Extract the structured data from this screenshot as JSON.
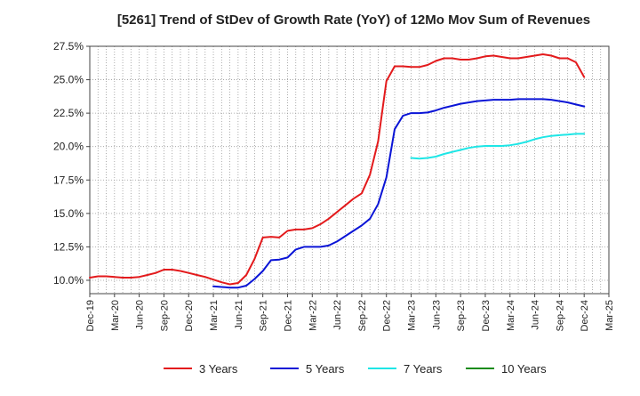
{
  "chart_data": {
    "type": "line",
    "title": "[5261]  Trend of StDev of Growth Rate (YoY) of 12Mo Mov Sum of Revenues",
    "xlabel": "",
    "ylabel": "",
    "ylim": [
      9.0,
      27.5
    ],
    "yticks": [
      10.0,
      12.5,
      15.0,
      17.5,
      20.0,
      22.5,
      25.0,
      27.5
    ],
    "ytick_labels": [
      "10.0%",
      "12.5%",
      "15.0%",
      "17.5%",
      "20.0%",
      "22.5%",
      "25.0%",
      "27.5%"
    ],
    "x_tick_labels": [
      "Dec-19",
      "Mar-20",
      "Jun-20",
      "Sep-20",
      "Dec-20",
      "Mar-21",
      "Jun-21",
      "Sep-21",
      "Dec-21",
      "Mar-22",
      "Jun-22",
      "Sep-22",
      "Dec-22",
      "Mar-23",
      "Jun-23",
      "Sep-23",
      "Dec-23",
      "Mar-24",
      "Jun-24",
      "Sep-24",
      "Dec-24",
      "Mar-25"
    ],
    "x_start": "Dec-19",
    "x_months": 63,
    "grid": true,
    "legend_position": "bottom",
    "series": [
      {
        "name": "3 Years",
        "color": "#e31a1c",
        "start_index": 0,
        "values": [
          10.2,
          10.3,
          10.3,
          10.25,
          10.2,
          10.2,
          10.25,
          10.4,
          10.55,
          10.8,
          10.8,
          10.7,
          10.55,
          10.4,
          10.25,
          10.05,
          9.85,
          9.7,
          9.8,
          10.4,
          11.6,
          13.2,
          13.25,
          13.2,
          13.7,
          13.8,
          13.8,
          13.9,
          14.2,
          14.6,
          15.1,
          15.6,
          16.1,
          16.5,
          17.9,
          20.4,
          24.9,
          26.0,
          26.0,
          25.95,
          25.95,
          26.1,
          26.4,
          26.6,
          26.6,
          26.5,
          26.5,
          26.6,
          26.75,
          26.8,
          26.7,
          26.6,
          26.6,
          26.7,
          26.8,
          26.9,
          26.8,
          26.6,
          26.6,
          26.3,
          25.2
        ]
      },
      {
        "name": "5 Years",
        "color": "#0a14d6",
        "start_index": 15,
        "values": [
          9.55,
          9.5,
          9.45,
          9.45,
          9.6,
          10.1,
          10.7,
          11.5,
          11.55,
          11.7,
          12.3,
          12.5,
          12.5,
          12.5,
          12.6,
          12.9,
          13.3,
          13.7,
          14.1,
          14.6,
          15.7,
          17.7,
          21.3,
          22.3,
          22.5,
          22.5,
          22.55,
          22.7,
          22.9,
          23.05,
          23.2,
          23.3,
          23.4,
          23.45,
          23.5,
          23.5,
          23.5,
          23.55,
          23.55,
          23.55,
          23.55,
          23.5,
          23.4,
          23.3,
          23.15,
          23.0
        ]
      },
      {
        "name": "7 Years",
        "color": "#1ee6e6",
        "start_index": 39,
        "values": [
          19.15,
          19.1,
          19.15,
          19.25,
          19.45,
          19.6,
          19.75,
          19.9,
          20.0,
          20.05,
          20.05,
          20.05,
          20.1,
          20.2,
          20.35,
          20.55,
          20.7,
          20.8,
          20.85,
          20.9,
          20.95,
          20.95
        ]
      },
      {
        "name": "10 Years",
        "color": "#1a8c1a",
        "start_index": 0,
        "values": []
      }
    ]
  }
}
